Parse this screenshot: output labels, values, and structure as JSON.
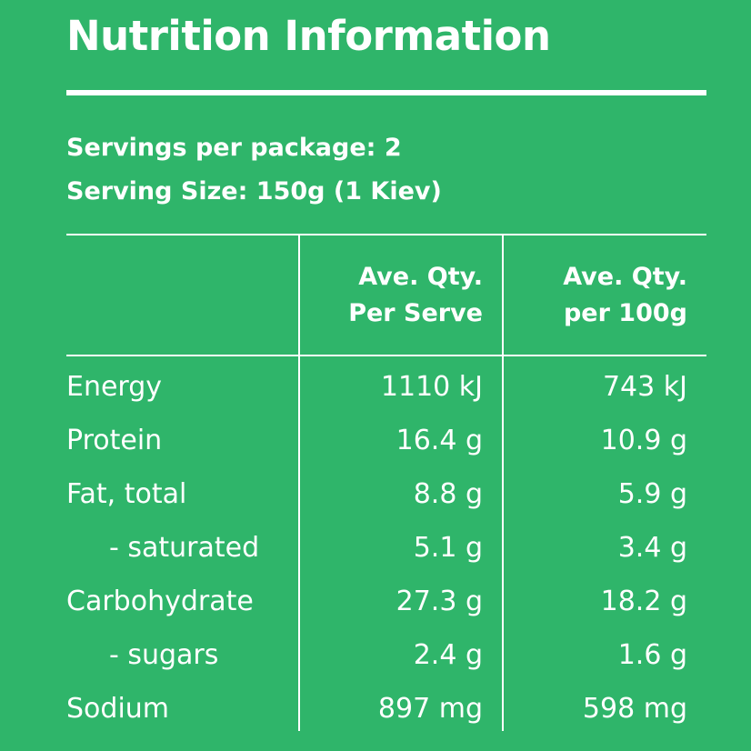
{
  "title": "Nutrition Information",
  "servings_per_package": "Servings per package: 2",
  "serving_size": "Serving Size: 150g (1 Kiev)",
  "columns": {
    "per_serve": [
      "Ave. Qty.",
      "Per Serve"
    ],
    "per_100g": [
      "Ave. Qty.",
      "per 100g"
    ]
  },
  "rows": [
    {
      "label": "Energy",
      "per_serve": "1110  kJ",
      "per_100g": "743 kJ",
      "indent": false
    },
    {
      "label": "Protein",
      "per_serve": "16.4 g",
      "per_100g": "10.9 g",
      "indent": false
    },
    {
      "label": "Fat, total",
      "per_serve": "8.8 g",
      "per_100g": "5.9 g",
      "indent": false
    },
    {
      "label": "- saturated",
      "per_serve": "5.1 g",
      "per_100g": "3.4 g",
      "indent": true
    },
    {
      "label": "Carbohydrate",
      "per_serve": "27.3 g",
      "per_100g": "18.2 g",
      "indent": false
    },
    {
      "label": "- sugars",
      "per_serve": "2.4 g",
      "per_100g": "1.6 g",
      "indent": true
    },
    {
      "label": "Sodium",
      "per_serve": "897 mg",
      "per_100g": "598 mg",
      "indent": false
    }
  ],
  "colors": {
    "background": "#2fb56a",
    "text": "#ffffff"
  }
}
